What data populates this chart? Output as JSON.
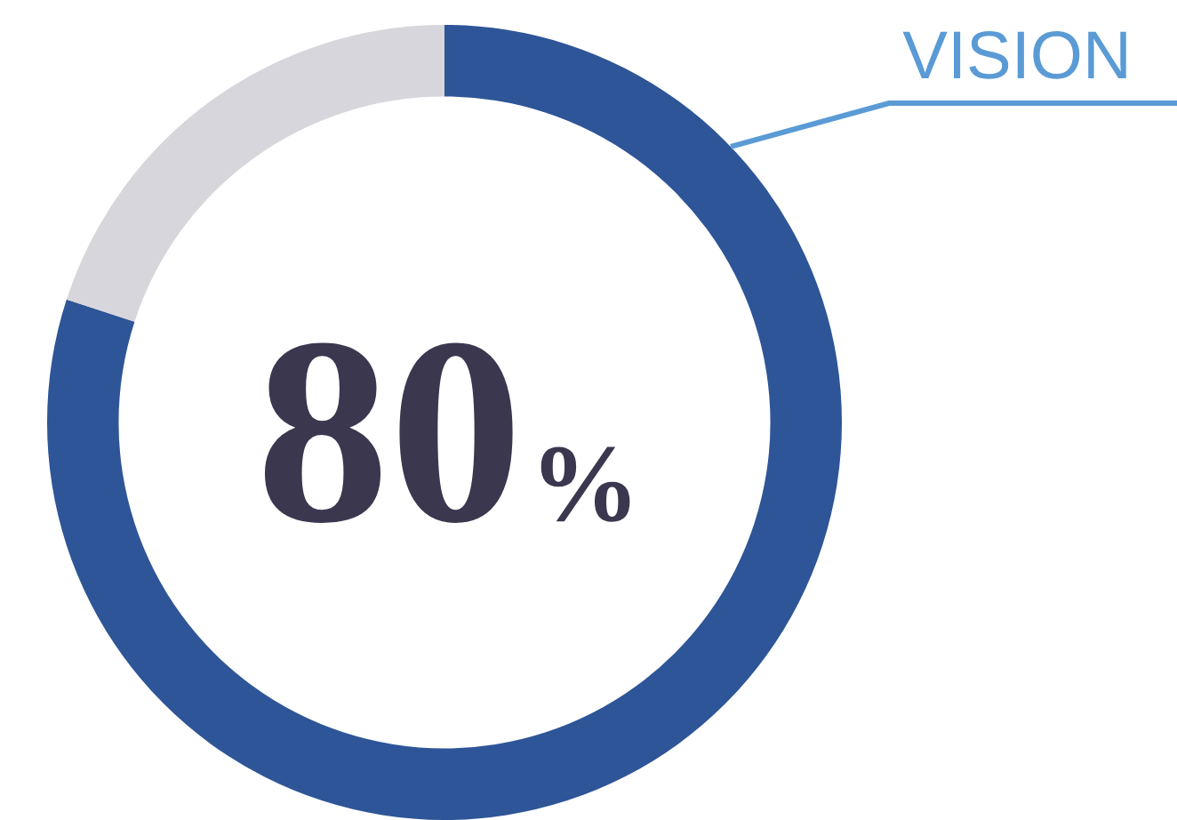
{
  "chart_data": {
    "type": "donut",
    "categories": [
      "VISION",
      null
    ],
    "values": [
      80,
      20
    ],
    "colors": [
      "#2e5597",
      "#d6d6dc"
    ],
    "value_labels": [
      "80%",
      null
    ],
    "legend": false
  }
}
